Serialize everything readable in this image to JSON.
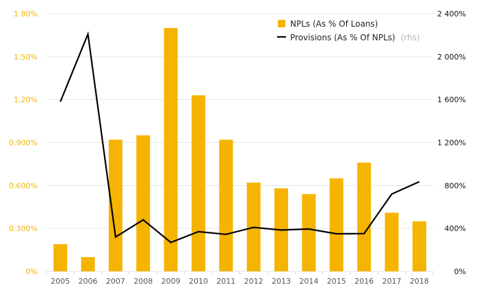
{
  "chart_data": {
    "type": "bar",
    "categories": [
      "2005",
      "2006",
      "2007",
      "2008",
      "2009",
      "2010",
      "2011",
      "2012",
      "2013",
      "2014",
      "2015",
      "2016",
      "2017",
      "2018"
    ],
    "series": [
      {
        "name": "NPLs (As % Of Loans)",
        "type": "bar",
        "axis": "left",
        "color": "#f5b400",
        "values": [
          0.19,
          0.1,
          0.92,
          0.95,
          1.7,
          1.23,
          0.92,
          0.62,
          0.58,
          0.54,
          0.65,
          0.76,
          0.41,
          0.35
        ]
      },
      {
        "name": "Provisions (As % Of NPLs)",
        "name_suffix": "(rhs)",
        "type": "line",
        "axis": "right",
        "color": "#000000",
        "values": [
          1580,
          2210,
          320,
          480,
          270,
          370,
          345,
          410,
          385,
          395,
          350,
          352,
          720,
          835
        ]
      }
    ],
    "y_left": {
      "ylim": [
        0,
        1.8
      ],
      "ticks": [
        0,
        0.3,
        0.6,
        0.9,
        1.2,
        1.5,
        1.8
      ],
      "tick_labels": [
        "0%",
        "0.300%",
        "0.600%",
        "0.900%",
        "1.20%",
        "1.50%",
        "1.80%"
      ]
    },
    "y_right": {
      "ylim": [
        0,
        2400
      ],
      "ticks": [
        0,
        400,
        800,
        1200,
        1600,
        2000,
        2400
      ],
      "tick_labels": [
        "0%",
        "400%",
        "800%",
        "1 200%",
        "1 600%",
        "2 000%",
        "2 400%"
      ]
    },
    "grid": true,
    "legend_position": "top-right",
    "colors": {
      "bar": "#f5b400",
      "line": "#000000",
      "left_axis_text": "#f5b400",
      "right_axis_text": "#111111"
    }
  }
}
